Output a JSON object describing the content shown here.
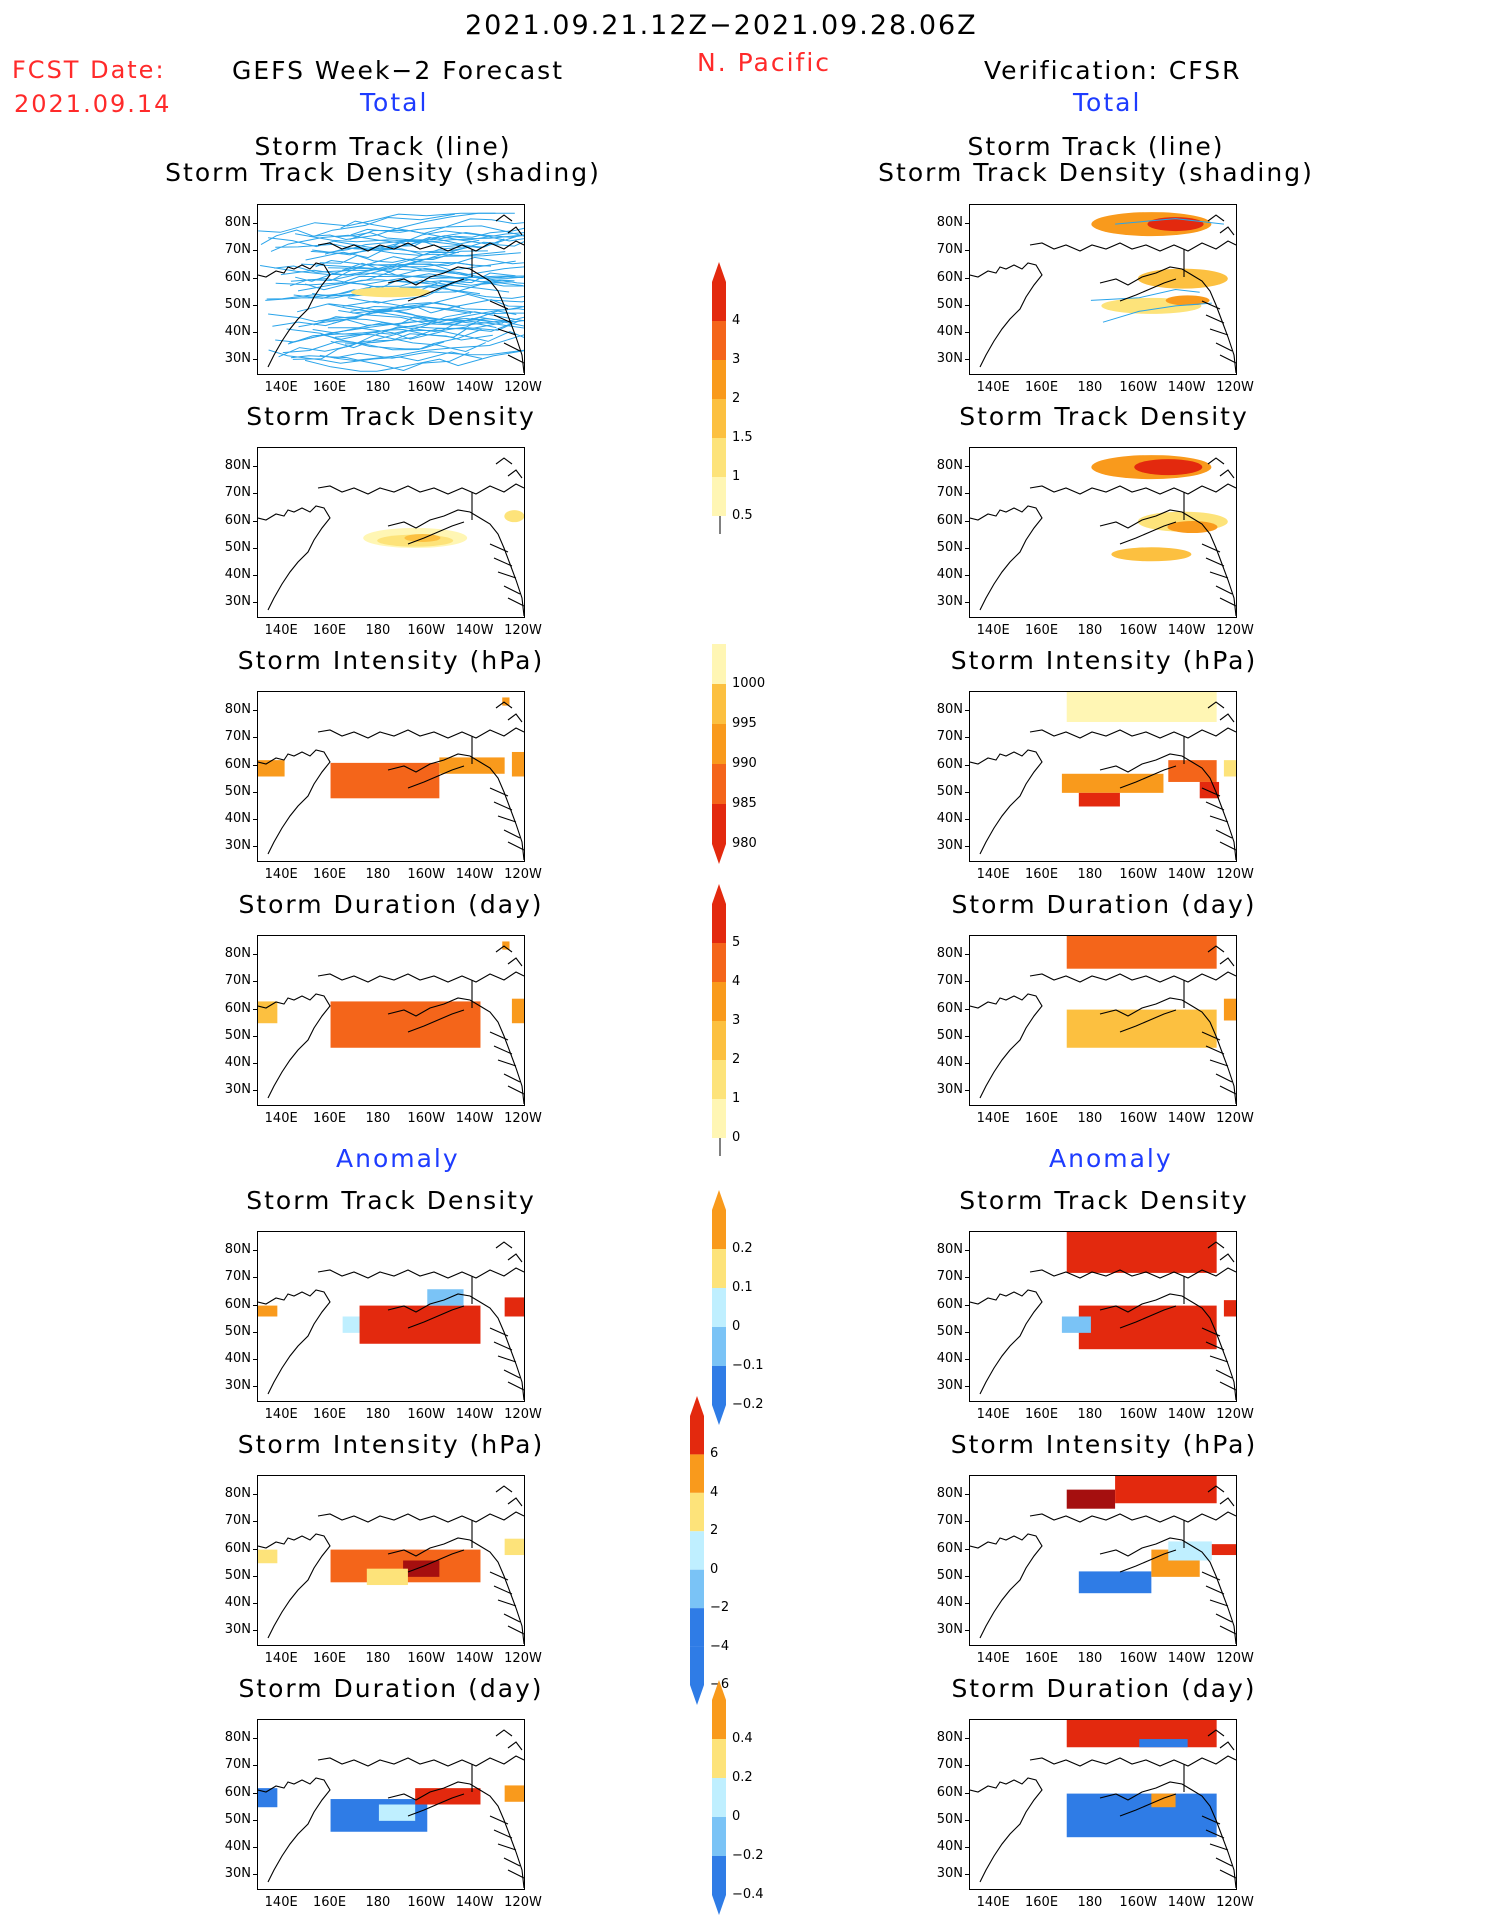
{
  "header": {
    "date_range": "2021.09.21.12Z−2021.09.28.06Z",
    "fcst_label": "FCST Date:",
    "fcst_date": "2021.09.14",
    "left_title": "GEFS Week−2 Forecast",
    "region": "N. Pacific",
    "right_title": "Verification: CFSR",
    "total_label": "Total",
    "anomaly_label": "Anomaly"
  },
  "panel_titles": {
    "track_line": "Storm Track (line)",
    "track_shading": "Storm Track Density (shading)",
    "density": "Storm Track Density",
    "intensity": "Storm Intensity (hPa)",
    "duration": "Storm Duration (day)"
  },
  "axes": {
    "lat_labels": [
      "80N",
      "70N",
      "60N",
      "50N",
      "40N",
      "30N"
    ],
    "lon_labels": [
      "140E",
      "160E",
      "180",
      "160W",
      "140W",
      "120W"
    ]
  },
  "colorbars": {
    "density_total": [
      "4",
      "3",
      "2",
      "1.5",
      "1",
      "0.5"
    ],
    "intensity_total": [
      "1000",
      "995",
      "990",
      "985",
      "980"
    ],
    "duration_total": [
      "5",
      "4",
      "3",
      "2",
      "1",
      "0"
    ],
    "density_anom": [
      "0.2",
      "0.1",
      "0",
      "−0.1",
      "−0.2"
    ],
    "intensity_anom": [
      "6",
      "4",
      "2",
      "0",
      "−2",
      "−4",
      "−6"
    ],
    "duration_anom": [
      "0.4",
      "0.2",
      "0",
      "−0.2",
      "−0.4"
    ]
  },
  "colors": {
    "yellow_light": "#fff6b4",
    "yellow": "#fde37a",
    "orange_light": "#fcc040",
    "orange": "#f99a1c",
    "orange_dark": "#f4651a",
    "red": "#e3290e",
    "dark_red": "#a50f0f",
    "light_blue": "#bfefff",
    "blue": "#7ac3f6",
    "blue_dark": "#2f7ce6",
    "track_line": "#2aa4ea"
  }
}
